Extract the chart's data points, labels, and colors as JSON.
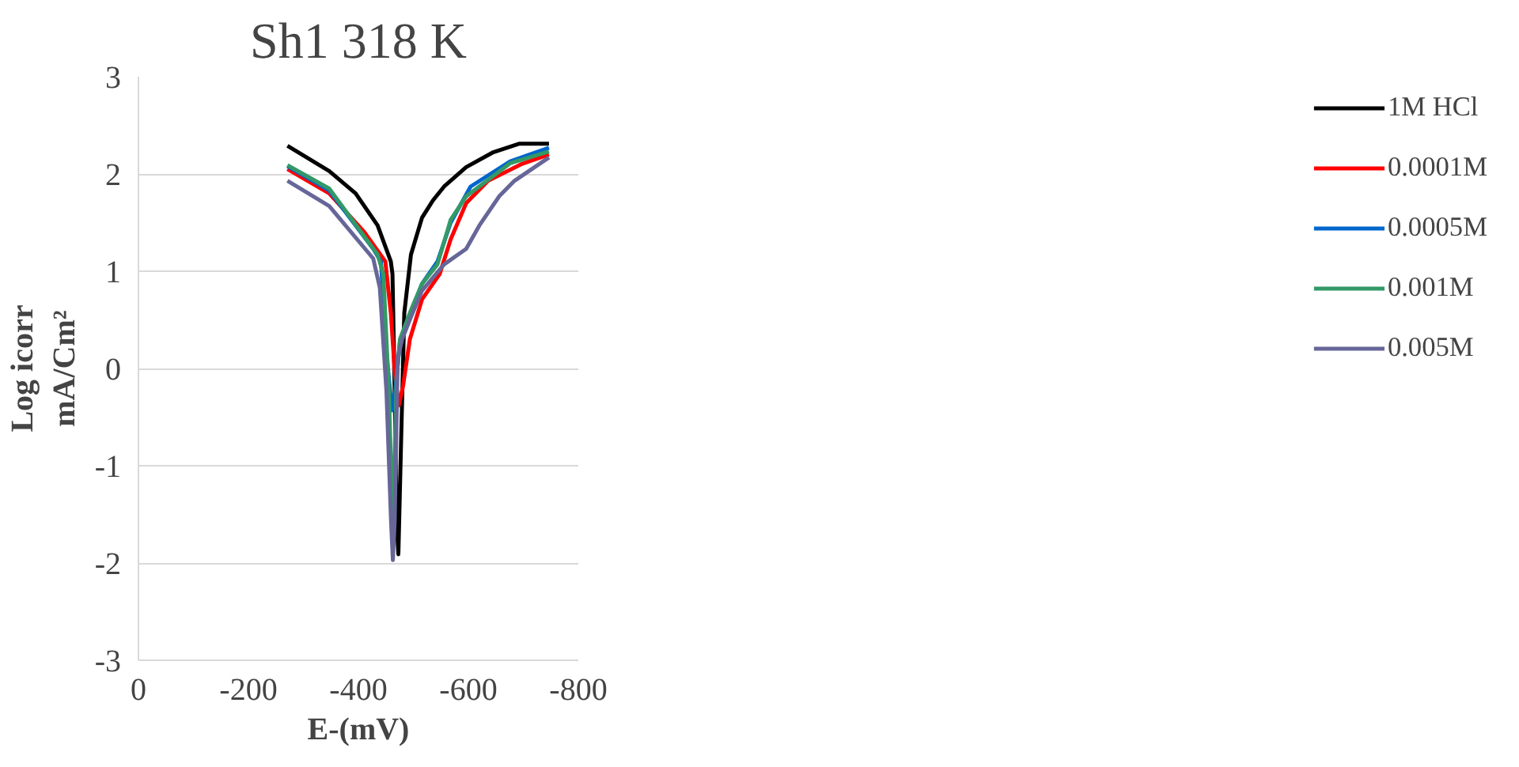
{
  "chart_data": {
    "type": "line",
    "title": "Sh1 318 K",
    "xlabel": "E-(mV)",
    "ylabel": "Log icorr\nmA/Cm²",
    "xlim": [
      0,
      -800
    ],
    "xticks": [
      0,
      -200,
      -400,
      -600,
      -800
    ],
    "ylim": [
      -3,
      3
    ],
    "yticks": [
      -3,
      -2,
      -1,
      0,
      1,
      2,
      3
    ],
    "grid": "y",
    "legend": "right",
    "marker": "none",
    "line_style": "solid",
    "series": [
      {
        "name": "1M HCl",
        "color": "#000000",
        "x": [
          -271,
          -347,
          -395,
          -435,
          -459,
          -462,
          -466,
          -469.5,
          -472.7,
          -477,
          -483.5,
          -495.6,
          -515.7,
          -535.8,
          -555.8,
          -596,
          -644,
          -692,
          -746.6
        ],
        "values": [
          2.29,
          2.03,
          1.8,
          1.47,
          1.1,
          0.97,
          -0.23,
          -1.57,
          -1.91,
          -0.9,
          0.57,
          1.17,
          1.55,
          1.73,
          1.87,
          2.07,
          2.22,
          2.31,
          2.31
        ]
      },
      {
        "name": "0.0001M",
        "color": "#ff0000",
        "x": [
          -271,
          -347,
          -411,
          -449,
          -459,
          -467,
          -473.5,
          -481.5,
          -493.6,
          -515.7,
          -547.8,
          -567.9,
          -596,
          -636,
          -696,
          -746.6
        ],
        "values": [
          2.05,
          1.8,
          1.4,
          1.1,
          0.57,
          -0.1,
          -0.38,
          -0.17,
          0.3,
          0.71,
          0.97,
          1.33,
          1.7,
          1.93,
          2.1,
          2.2
        ]
      },
      {
        "name": "0.0005M",
        "color": "#0066cc",
        "x": [
          -271,
          -347,
          -427,
          -441,
          -451,
          -461,
          -467,
          -475.5,
          -495.6,
          -515.7,
          -543.8,
          -567.9,
          -604,
          -676,
          -746.6
        ],
        "values": [
          2.08,
          1.83,
          1.23,
          1.1,
          0.17,
          -0.43,
          -0.23,
          0.27,
          0.57,
          0.87,
          1.1,
          1.5,
          1.87,
          2.13,
          2.27
        ]
      },
      {
        "name": "0.001M",
        "color": "#339966",
        "x": [
          -271,
          -347,
          -435,
          -445.4,
          -455.4,
          -462.7,
          -469.5,
          -475.5,
          -495.6,
          -515.7,
          -543.8,
          -567.9,
          -596,
          -676,
          -746.6
        ],
        "values": [
          2.09,
          1.85,
          1.17,
          0.97,
          -0.23,
          -1.67,
          -0.1,
          0.3,
          0.6,
          0.87,
          1.07,
          1.53,
          1.77,
          2.11,
          2.23
        ]
      },
      {
        "name": "0.005M",
        "color": "#666699",
        "x": [
          -271,
          -347,
          -427,
          -439,
          -451,
          -459.4,
          -462.7,
          -466,
          -471.5,
          -479.5,
          -495.6,
          -515.7,
          -555.8,
          -596,
          -620,
          -656,
          -684,
          -746.6
        ],
        "values": [
          1.93,
          1.67,
          1.13,
          0.83,
          -0.23,
          -1.57,
          -1.97,
          -1.57,
          0.1,
          0.3,
          0.53,
          0.8,
          1.07,
          1.23,
          1.47,
          1.77,
          1.93,
          2.17
        ]
      }
    ]
  }
}
